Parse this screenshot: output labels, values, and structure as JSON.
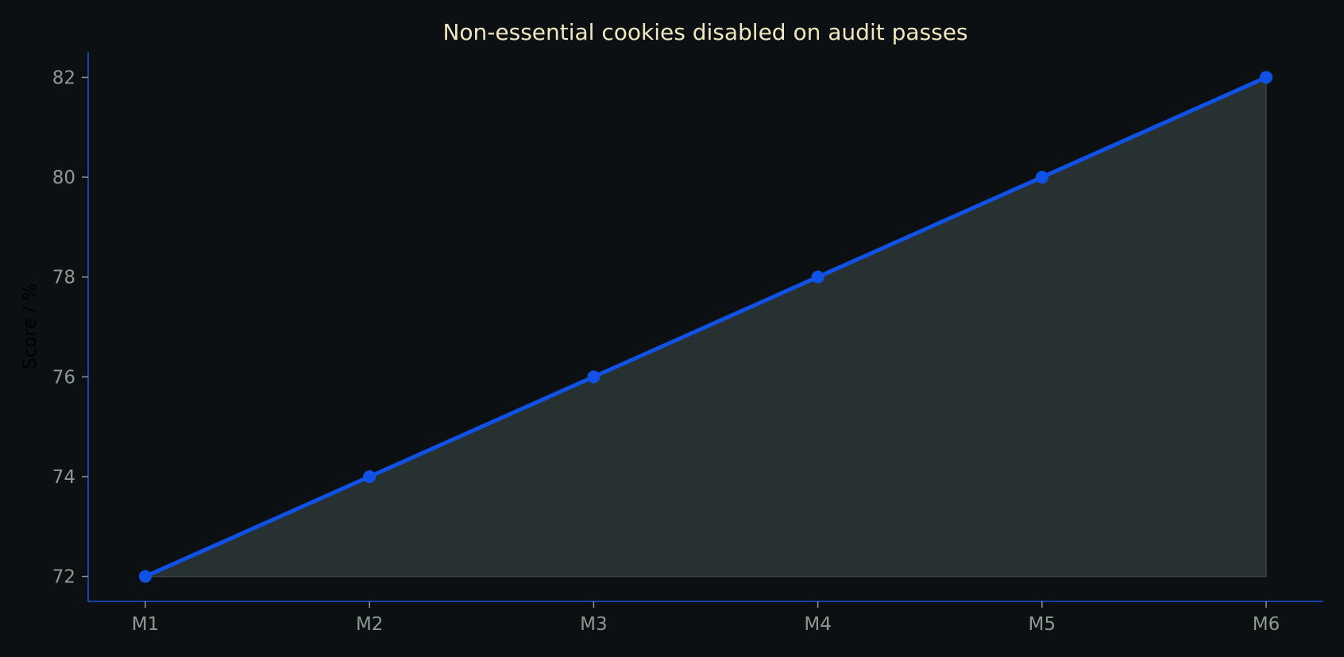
{
  "chart_data": {
    "type": "area",
    "title": "Non-essential cookies disabled on audit passes",
    "xlabel": "",
    "ylabel": "Score / %",
    "categories": [
      "M1",
      "M2",
      "M3",
      "M4",
      "M5",
      "M6"
    ],
    "series": [
      {
        "values": [
          72,
          74,
          76,
          78,
          80,
          82
        ]
      }
    ],
    "ylim": [
      71.5,
      82.5
    ],
    "yticks": [
      72,
      74,
      76,
      78,
      80,
      82
    ],
    "grid": false,
    "legend": "none",
    "colors": {
      "background": "#0c1013",
      "line": "#1152e6",
      "marker": "#1152e6",
      "fill": "#2a3433",
      "axis": "#1b4fd6",
      "title": "#efe8bf",
      "tick_label": "#8c9a91",
      "axis_label": "#000000"
    }
  }
}
